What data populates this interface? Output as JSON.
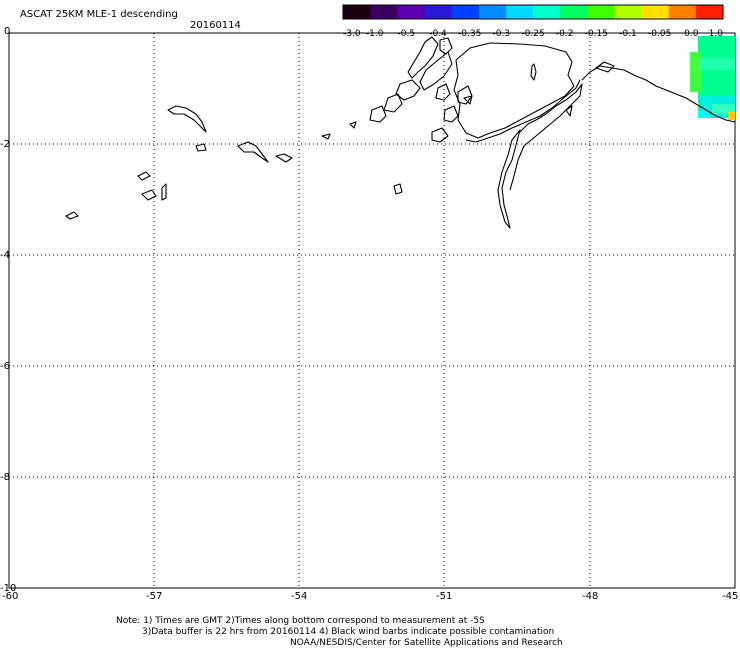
{
  "header": {
    "title": "ASCAT 25KM MLE-1 descending",
    "date": "20160114"
  },
  "colorbar": {
    "labels": [
      "-3.0",
      "-1.0",
      "-0.5",
      "-0.4",
      "-0.35",
      "-0.3",
      "-0.25",
      "-0.2",
      "-0.15",
      "-0.1",
      "-0.05",
      "0.0",
      "1.0"
    ],
    "colors": [
      "#1a0010",
      "#3b0060",
      "#5a00b0",
      "#2a1ad8",
      "#0040ff",
      "#008cff",
      "#00d8ff",
      "#00ffcc",
      "#00ff60",
      "#40ff00",
      "#b0ff00",
      "#ffe000",
      "#ff8000",
      "#ff2000"
    ]
  },
  "map": {
    "y_ticks": [
      "0",
      "-2",
      "-4",
      "-6",
      "-8",
      "-10"
    ],
    "x_ticks": [
      "-60",
      "-57",
      "-54",
      "-51",
      "-48",
      "-45"
    ],
    "lat_range": [
      -10,
      0
    ],
    "lon_range": [
      -60,
      -45
    ]
  },
  "footer": {
    "line1": "Note: 1) Times are GMT 2)Times along bottom correspond to measurement at -5S",
    "line2": "3)Data buffer is 22 hrs from 20160114 4) Black wind barbs indicate possible contamination",
    "line3": "NOAA/NESDIS/Center for Satellite Applications and Research"
  }
}
